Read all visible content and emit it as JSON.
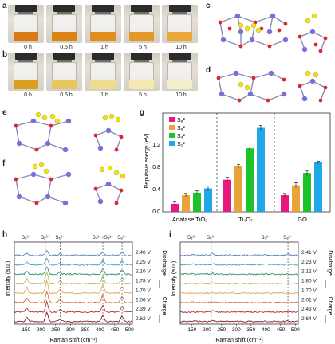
{
  "panels": {
    "a": "a",
    "b": "b",
    "c": "c",
    "d": "d",
    "e": "e",
    "f": "f",
    "g": "g",
    "h": "h",
    "i": "i"
  },
  "vials_a": {
    "times": [
      "0 h",
      "0.5 h",
      "1 h",
      "5 h",
      "10 h"
    ],
    "colors": [
      "#d97a12",
      "#dc8318",
      "#e08e20",
      "#e39a2a",
      "#e8a736"
    ]
  },
  "vials_b": {
    "times": [
      "0 h",
      "0.5 h",
      "1 h",
      "5 h",
      "10 h"
    ],
    "colors": [
      "#dca020",
      "#e7c860",
      "#eedd90",
      "#f2e8b0",
      "#f4efcc"
    ]
  },
  "chart_data": [
    {
      "type": "bar",
      "panel": "g",
      "ylabel": "Repulsive energy (eV)",
      "ylim": [
        0,
        1.6
      ],
      "yticks": [
        "0.0",
        "0.4",
        "0.8",
        "1.2"
      ],
      "groups": [
        "Anatase TiO₂",
        "Ti₄O₇",
        "GO"
      ],
      "series": [
        {
          "name": "S₈²⁻",
          "color": "#e6197f",
          "values": [
            0.13,
            0.52,
            0.27
          ],
          "errors": [
            0.03,
            0.04,
            0.03
          ]
        },
        {
          "name": "S₆²⁻",
          "color": "#e8a33a",
          "values": [
            0.27,
            0.74,
            0.43
          ],
          "errors": [
            0.03,
            0.03,
            0.04
          ]
        },
        {
          "name": "S₄²⁻",
          "color": "#1cc42a",
          "values": [
            0.31,
            1.03,
            0.63
          ],
          "errors": [
            0.03,
            0.02,
            0.04
          ]
        },
        {
          "name": "S₂²⁻",
          "color": "#1ea8e8",
          "values": [
            0.38,
            1.36,
            0.8
          ],
          "errors": [
            0.04,
            0.04,
            0.02
          ]
        }
      ]
    },
    {
      "type": "line",
      "panel": "h",
      "xlabel": "Raman shift (cm⁻¹)",
      "ylabel": "Intensity (a.u.)",
      "xlim": [
        110,
        510
      ],
      "xticks": [
        150,
        200,
        250,
        300,
        350,
        400,
        450,
        500
      ],
      "peak_labels": [
        {
          "text": "S₈²⁻",
          "x": 150
        },
        {
          "text": "S₈²⁻",
          "x": 215
        },
        {
          "text": "S₆²⁻",
          "x": 265
        },
        {
          "text": "S₄²⁻+S₃²⁻",
          "x": 410
        },
        {
          "text": "S₈²⁻",
          "x": 475
        }
      ],
      "dashed_lines": [
        215,
        265,
        410,
        475
      ],
      "peaks": [
        [
          152,
          6
        ],
        [
          220,
          14
        ],
        [
          265,
          4
        ],
        [
          410,
          10
        ],
        [
          475,
          8
        ]
      ],
      "series": [
        {
          "name": "2.40 V",
          "color": "#5a7bbe",
          "scale": 0.4
        },
        {
          "name": "2.25 V",
          "color": "#3fa0b8",
          "scale": 0.6
        },
        {
          "name": "2.10 V",
          "color": "#2e8f6a",
          "scale": 0.7
        },
        {
          "name": "1.78 V",
          "color": "#a9c25e",
          "scale": 1.0
        },
        {
          "name": "1.70 V",
          "color": "#e3a656",
          "scale": 1.1
        },
        {
          "name": "2.06 V",
          "color": "#db6b42",
          "scale": 1.0
        },
        {
          "name": "2.39 V",
          "color": "#b32a2a",
          "scale": 0.9
        },
        {
          "name": "2.62 V",
          "color": "#8a1c24",
          "scale": 0.8
        }
      ],
      "annotations": {
        "discharge": "Discharge",
        "charge": "Charge"
      }
    },
    {
      "type": "line",
      "panel": "i",
      "xlabel": "Raman shift (cm⁻¹)",
      "ylabel": "Intensity (a.u.)",
      "xlim": [
        110,
        510
      ],
      "xticks": [
        150,
        200,
        250,
        300,
        350,
        400,
        450,
        500
      ],
      "peak_labels": [
        {
          "text": "S₈²⁻",
          "x": 150
        },
        {
          "text": "S₈²⁻",
          "x": 215
        },
        {
          "text": "S₃²⁻",
          "x": 400
        },
        {
          "text": "S₈²⁻",
          "x": 475
        }
      ],
      "dashed_lines": [
        215,
        400,
        475
      ],
      "peaks": [
        [
          152,
          2
        ],
        [
          220,
          4
        ],
        [
          400,
          2
        ],
        [
          475,
          2
        ]
      ],
      "series": [
        {
          "name": "2.41 V",
          "color": "#5a7bbe",
          "scale": 0.6
        },
        {
          "name": "2.23 V",
          "color": "#3fa0b8",
          "scale": 0.4
        },
        {
          "name": "2.12 V",
          "color": "#2e8f6a",
          "scale": 0.3
        },
        {
          "name": "1.80 V",
          "color": "#a9c25e",
          "scale": 0.3
        },
        {
          "name": "1.70 V",
          "color": "#e3a656",
          "scale": 0.3
        },
        {
          "name": "2.01 V",
          "color": "#db6b42",
          "scale": 0.3
        },
        {
          "name": "2.43 V",
          "color": "#b32a2a",
          "scale": 0.3
        },
        {
          "name": "2.64 V",
          "color": "#8a1c24",
          "scale": 0.3
        }
      ],
      "annotations": {
        "discharge": "Discharge",
        "charge": "Charge"
      }
    }
  ]
}
